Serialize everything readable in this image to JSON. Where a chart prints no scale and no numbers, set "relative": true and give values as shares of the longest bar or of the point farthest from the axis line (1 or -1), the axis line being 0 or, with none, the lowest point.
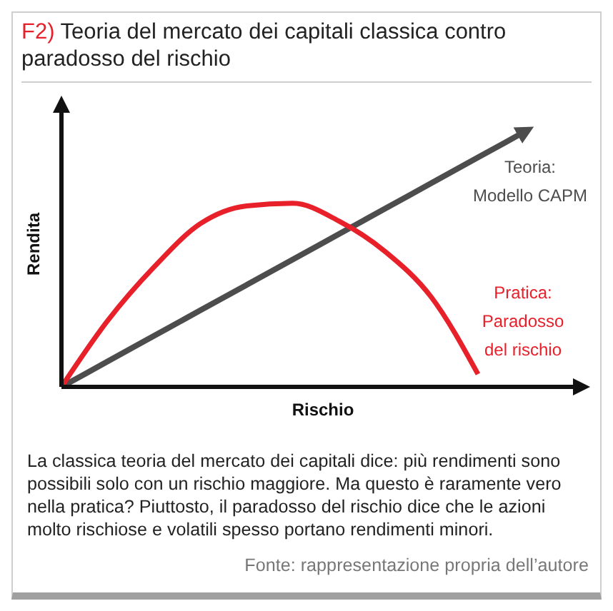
{
  "chart_data": {
    "type": "line",
    "title": "F2) Teoria del mercato dei capitali classica contro paradosso del rischio",
    "xlabel": "Rischio",
    "ylabel": "Rendita",
    "relative": true,
    "legend": "right",
    "marker": "none",
    "categories": [
      null,
      null,
      null,
      null,
      null,
      null,
      null,
      null,
      null,
      null,
      null
    ],
    "series": [
      {
        "name": "Teoria:\nModello CAPM",
        "color": "#4d4d4d",
        "values": [
          0,
          0.1,
          0.2,
          0.3,
          0.4,
          0.5,
          0.6,
          0.7,
          0.8,
          0.9,
          1
        ]
      },
      {
        "name": "Pratica:\nParadosso\ndel rischio",
        "color": "#e8202a",
        "values": [
          0,
          0.26,
          0.47,
          0.64,
          0.71,
          0.72,
          0.65,
          0.53,
          0.35,
          0.05,
          null
        ]
      }
    ],
    "annotations": [
      "La classica teoria del mercato dei capitali dice: più rendimenti sono possibili solo con un rischio maggiore. Ma questo è raramente vero nella pratica? Piuttosto, il paradosso del rischio dice che le azioni molto rischiose e volatili spesso portano rendimenti minori.",
      "Fonte: rappresentazione propria dell’autore"
    ]
  }
}
